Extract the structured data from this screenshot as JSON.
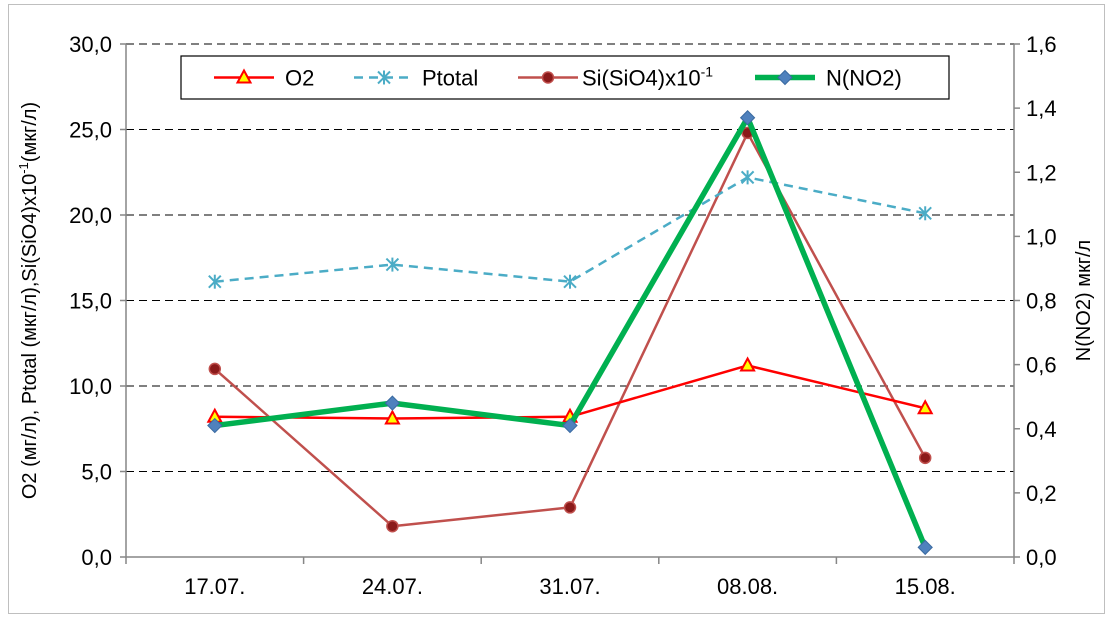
{
  "chart_data": {
    "type": "line",
    "categories": [
      "17.07.",
      "24.07.",
      "31.07.",
      "08.08.",
      "15.08."
    ],
    "y_left": {
      "label_parts": [
        "O2 (мг/л),  Ptotal (мкг/л),Si(SiO4)x10",
        "-1",
        "(мкг/л)"
      ],
      "range": [
        0,
        30
      ],
      "ticks": [
        "0,0",
        "5,0",
        "10,0",
        "15,0",
        "20,0",
        "25,0",
        "30,0"
      ]
    },
    "y_right": {
      "label": "N(NO2)  мкг/л",
      "range": [
        0,
        1.6
      ],
      "ticks": [
        "0,0",
        "0,2",
        "0,4",
        "0,6",
        "0,8",
        "1,0",
        "1,2",
        "1,4",
        "1,6"
      ]
    },
    "grid": "horizontal dashed",
    "legend_position": "top",
    "series": [
      {
        "name": "O2",
        "axis": "left",
        "color": "#ff0000",
        "style": "solid",
        "marker": "triangle",
        "values": [
          8.2,
          8.1,
          8.2,
          11.2,
          8.7
        ]
      },
      {
        "name": "Ptotal",
        "axis": "left",
        "color": "#4bacc6",
        "style": "dashed",
        "marker": "asterisk",
        "values": [
          16.1,
          17.1,
          16.1,
          22.2,
          20.1
        ]
      },
      {
        "name_parts": [
          "Si(SiO4)x10",
          "-1"
        ],
        "axis": "left",
        "color": "#c0504d",
        "style": "solid",
        "marker": "circle",
        "values": [
          11.0,
          1.8,
          2.9,
          24.8,
          5.8
        ]
      },
      {
        "name": "N(NO2)",
        "axis": "right",
        "color": "#00b050",
        "style": "solid-thick",
        "marker": "diamond",
        "values": [
          0.41,
          0.48,
          0.41,
          1.37,
          0.03
        ]
      }
    ]
  }
}
